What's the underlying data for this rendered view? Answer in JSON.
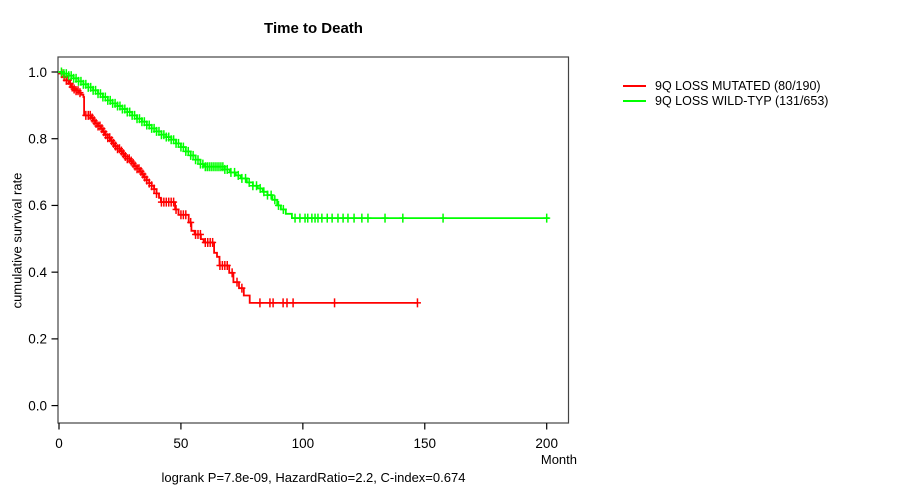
{
  "chart_data": {
    "type": "line",
    "subtype": "kaplan-meier-step-survival",
    "title": "Time to Death",
    "xlabel": "Month",
    "ylabel": "cumulative survival rate",
    "annotation": "logrank P=7.8e-09, HazardRatio=2.2, C-index=0.674",
    "xlim": [
      0,
      200
    ],
    "ylim": [
      0.0,
      1.0
    ],
    "x_ticks": [
      "0",
      "50",
      "100",
      "150",
      "200"
    ],
    "y_ticks": [
      "0.0",
      "0.2",
      "0.4",
      "0.6",
      "0.8",
      "1.0"
    ],
    "grid": false,
    "legend_position": "right-outside",
    "series": [
      {
        "name": "9Q LOSS MUTATED (80/190)",
        "color": "#ff0000",
        "steps": [
          [
            0,
            1.0
          ],
          [
            1,
            0.995
          ],
          [
            2,
            0.985
          ],
          [
            3,
            0.975
          ],
          [
            4,
            0.965
          ],
          [
            5,
            0.955
          ],
          [
            6,
            0.949
          ],
          [
            7,
            0.944
          ],
          [
            8,
            0.938
          ],
          [
            9,
            0.932
          ],
          [
            10,
            0.925
          ],
          [
            10.3,
            0.87
          ],
          [
            13,
            0.862
          ],
          [
            14,
            0.854
          ],
          [
            15,
            0.846
          ],
          [
            16,
            0.838
          ],
          [
            17,
            0.83
          ],
          [
            18,
            0.821
          ],
          [
            19,
            0.812
          ],
          [
            20,
            0.803
          ],
          [
            21,
            0.794
          ],
          [
            22,
            0.786
          ],
          [
            23,
            0.778
          ],
          [
            24,
            0.77
          ],
          [
            25,
            0.763
          ],
          [
            26,
            0.755
          ],
          [
            27,
            0.747
          ],
          [
            28,
            0.74
          ],
          [
            29,
            0.733
          ],
          [
            30,
            0.726
          ],
          [
            31,
            0.718
          ],
          [
            32,
            0.71
          ],
          [
            33,
            0.702
          ],
          [
            34,
            0.694
          ],
          [
            35,
            0.685
          ],
          [
            36,
            0.676
          ],
          [
            37,
            0.667
          ],
          [
            38,
            0.659
          ],
          [
            39,
            0.649
          ],
          [
            40,
            0.636
          ],
          [
            41,
            0.623
          ],
          [
            41.8,
            0.61
          ],
          [
            47.6,
            0.588
          ],
          [
            49,
            0.572
          ],
          [
            53.2,
            0.549
          ],
          [
            54.3,
            0.524
          ],
          [
            55.6,
            0.513
          ],
          [
            58.2,
            0.499
          ],
          [
            59.3,
            0.489
          ],
          [
            63.6,
            0.458
          ],
          [
            64.8,
            0.446
          ],
          [
            65.8,
            0.42
          ],
          [
            69.8,
            0.398
          ],
          [
            71.5,
            0.37
          ],
          [
            73.8,
            0.352
          ],
          [
            75.8,
            0.33
          ],
          [
            78.2,
            0.308
          ],
          [
            147,
            0.308
          ]
        ],
        "censor_months": [
          1.2,
          2.1,
          3,
          3.8,
          4.6,
          5.4,
          6.2,
          7,
          7.8,
          8.6,
          11,
          12,
          12.8,
          13.6,
          14.4,
          15.2,
          16,
          16.8,
          17.6,
          18.4,
          19.2,
          20,
          20.8,
          21.6,
          22.4,
          23.2,
          24,
          24.8,
          25.6,
          26.4,
          27.2,
          28,
          28.8,
          29.6,
          30.4,
          31.2,
          32,
          32.8,
          33.6,
          34.4,
          35.2,
          36,
          37,
          38,
          39,
          40,
          42,
          43,
          44,
          45,
          46,
          47,
          48,
          50,
          51,
          52,
          54,
          56,
          57,
          58,
          60,
          61,
          62,
          63,
          66,
          67,
          68,
          69,
          71,
          73,
          75,
          82.4,
          86.5,
          87.8,
          91.9,
          93.5,
          96,
          113,
          147
        ]
      },
      {
        "name": "9Q LOSS WILD-TYP (131/653)",
        "color": "#00ff00",
        "steps": [
          [
            0,
            1.0
          ],
          [
            2,
            0.995
          ],
          [
            4,
            0.989
          ],
          [
            6,
            0.981
          ],
          [
            8,
            0.972
          ],
          [
            10,
            0.963
          ],
          [
            12,
            0.954
          ],
          [
            14,
            0.945
          ],
          [
            16,
            0.935
          ],
          [
            18,
            0.925
          ],
          [
            20,
            0.915
          ],
          [
            22,
            0.906
          ],
          [
            24,
            0.898
          ],
          [
            26,
            0.889
          ],
          [
            28,
            0.88
          ],
          [
            30,
            0.87
          ],
          [
            32,
            0.86
          ],
          [
            34,
            0.851
          ],
          [
            36,
            0.841
          ],
          [
            38,
            0.831
          ],
          [
            40,
            0.822
          ],
          [
            42,
            0.812
          ],
          [
            44,
            0.805
          ],
          [
            46,
            0.797
          ],
          [
            48,
            0.786
          ],
          [
            50,
            0.775
          ],
          [
            52,
            0.762
          ],
          [
            54,
            0.75
          ],
          [
            56,
            0.737
          ],
          [
            58,
            0.724
          ],
          [
            59.5,
            0.716
          ],
          [
            68,
            0.708
          ],
          [
            70,
            0.699
          ],
          [
            72.5,
            0.69
          ],
          [
            74.5,
            0.681
          ],
          [
            77,
            0.669
          ],
          [
            79.5,
            0.659
          ],
          [
            81.5,
            0.651
          ],
          [
            83.5,
            0.641
          ],
          [
            85.5,
            0.631
          ],
          [
            87.5,
            0.617
          ],
          [
            89.5,
            0.6
          ],
          [
            91,
            0.588
          ],
          [
            93,
            0.575
          ],
          [
            95.5,
            0.562
          ],
          [
            201,
            0.562
          ]
        ],
        "censor_months": [
          1,
          2,
          3,
          4,
          5,
          6,
          7,
          8,
          9,
          10,
          11,
          12,
          13,
          14,
          15,
          16,
          17,
          18,
          19,
          20,
          21,
          22,
          23,
          24,
          25,
          26,
          27,
          28,
          29,
          30,
          31,
          32,
          33,
          34,
          35,
          36,
          37,
          38,
          39,
          40,
          41,
          42,
          43,
          44,
          45,
          46,
          47,
          48,
          49,
          50,
          51,
          52,
          53,
          54,
          55,
          56,
          57,
          58,
          59,
          60,
          60.8,
          61.6,
          62.4,
          63.2,
          64,
          64.8,
          65.6,
          66.4,
          67.2,
          68,
          69,
          70.5,
          72,
          73.5,
          75,
          76.5,
          78,
          79.5,
          81,
          82.5,
          84,
          85.5,
          87,
          88.5,
          90,
          92,
          96.8,
          98.8,
          100.9,
          102,
          103.7,
          105,
          106.2,
          107.8,
          110,
          112,
          114.4,
          116.5,
          118.5,
          121,
          124.2,
          126.7,
          133.7,
          141,
          157.5,
          200
        ]
      }
    ]
  }
}
